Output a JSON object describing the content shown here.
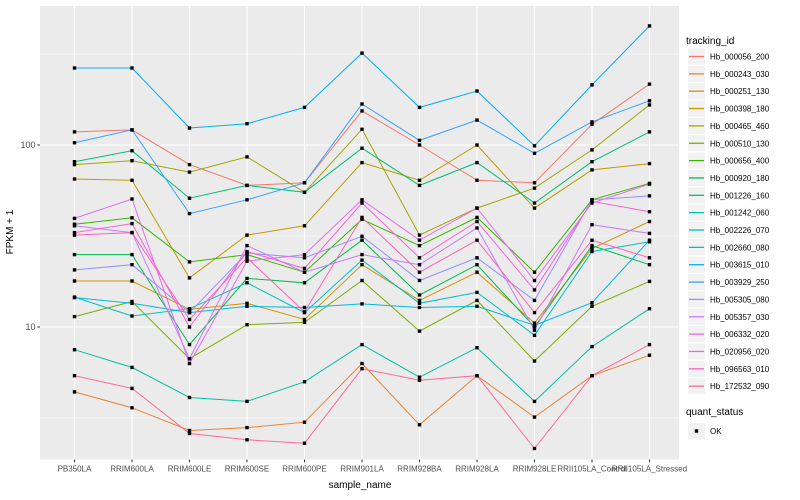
{
  "figure": {
    "panel_bg": "#EBEBEB",
    "grid_color": "#FFFFFF",
    "tick_color": "#333333",
    "tick_label_color": "#4D4D4D",
    "title_color": "#000000",
    "legend_key_bg": "#F2F2F2",
    "marker_color": "#000000"
  },
  "chart_data": {
    "type": "line",
    "title": "",
    "xlabel": "sample_name",
    "ylabel": "FPKM + 1",
    "y_scale": "log10",
    "y_ticks": [
      10,
      100
    ],
    "y_tick_labels": [
      "10",
      "100"
    ],
    "y_minor_ticks": [
      3.162,
      31.62,
      316.2
    ],
    "ylim": [
      1.88,
      581
    ],
    "grid": true,
    "legend_position": "right",
    "categories": [
      "PB350LA",
      "RRIM600LA",
      "RRIM600LE",
      "RRIM600SE",
      "RRIM600PE",
      "RRIM901LA",
      "RRIM928BA",
      "RRIM928LA",
      "RRIM928LE",
      "RRII105LA_Control",
      "RRII105LA_Stressed"
    ],
    "series": [
      {
        "name": "Hb_000056_200",
        "color": "#F8766D",
        "values": [
          118,
          121,
          78,
          60,
          62,
          154,
          100,
          64,
          62,
          130,
          216
        ]
      },
      {
        "name": "Hb_000243_030",
        "color": "#EA8331",
        "values": [
          4.4,
          3.6,
          2.7,
          2.8,
          3.0,
          6.3,
          2.9,
          5.4,
          3.2,
          5.4,
          7.0
        ]
      },
      {
        "name": "Hb_000251_130",
        "color": "#D89000",
        "values": [
          17.9,
          17.9,
          12.5,
          13.5,
          11.0,
          22,
          14,
          20,
          10.5,
          27,
          38
        ]
      },
      {
        "name": "Hb_000398_180",
        "color": "#C09B00",
        "values": [
          65,
          64,
          18.6,
          32,
          36,
          80,
          64,
          100,
          45,
          73,
          79
        ]
      },
      {
        "name": "Hb_000465_460",
        "color": "#A3A500",
        "values": [
          78,
          82,
          71,
          86,
          55,
          122,
          32,
          45,
          58,
          94,
          166
        ]
      },
      {
        "name": "Hb_000510_130",
        "color": "#7CAE00",
        "values": [
          11.4,
          13.8,
          6.7,
          10.3,
          10.6,
          18,
          9.5,
          14,
          6.5,
          13,
          17.8
        ]
      },
      {
        "name": "Hb_000656_400",
        "color": "#39B600",
        "values": [
          36.7,
          39.8,
          22.8,
          25,
          20,
          39,
          28,
          40,
          20,
          50,
          61.5
        ]
      },
      {
        "name": "Hb_000920_180",
        "color": "#00BB4E",
        "values": [
          25,
          25,
          8.0,
          18.5,
          17.5,
          30,
          15,
          22,
          10,
          28,
          22
        ]
      },
      {
        "name": "Hb_001226_160",
        "color": "#00BF7D",
        "values": [
          81,
          93,
          51,
          60,
          55,
          96,
          60,
          80,
          48,
          81,
          118
        ]
      },
      {
        "name": "Hb_001242_060",
        "color": "#00C1A3",
        "values": [
          7.5,
          6.0,
          4.1,
          3.9,
          5.0,
          8.0,
          5.3,
          7.7,
          3.9,
          7.8,
          12.6
        ]
      },
      {
        "name": "Hb_002226_070",
        "color": "#00BFC4",
        "values": [
          14.6,
          11.5,
          12.6,
          17.5,
          12,
          23.3,
          13.5,
          15.5,
          9.0,
          26,
          29.4
        ]
      },
      {
        "name": "Hb_002660_080",
        "color": "#00BAE0",
        "values": [
          14.5,
          13.5,
          12.0,
          13.0,
          12.8,
          13.4,
          12.8,
          13.0,
          10.2,
          13.6,
          30
        ]
      },
      {
        "name": "Hb_003615_010",
        "color": "#00B0F6",
        "values": [
          265,
          265,
          124,
          131,
          161,
          320,
          161,
          198,
          99,
          214,
          451
        ]
      },
      {
        "name": "Hb_003929_250",
        "color": "#35A2FF",
        "values": [
          103,
          121,
          42,
          50,
          62,
          168,
          106,
          137,
          90,
          134,
          175
        ]
      },
      {
        "name": "Hb_005305_080",
        "color": "#9590FF",
        "values": [
          20.6,
          22,
          12,
          25.5,
          24,
          31.5,
          18,
          24,
          14,
          50,
          52.5
        ]
      },
      {
        "name": "Hb_005357_030",
        "color": "#C77CFF",
        "values": [
          36,
          33,
          6.7,
          28,
          20,
          25,
          22,
          35,
          9.6,
          36.5,
          32.7
        ]
      },
      {
        "name": "Hb_006332_020",
        "color": "#E76BF3",
        "values": [
          39.5,
          50.5,
          6.3,
          23,
          25,
          50,
          30,
          45,
          18,
          48,
          61
        ]
      },
      {
        "name": "Hb_020956_020",
        "color": "#FA62DB",
        "values": [
          33,
          37,
          10,
          26,
          21,
          48,
          24,
          38,
          16,
          49,
          43
        ]
      },
      {
        "name": "Hb_096563_010",
        "color": "#FF62BC",
        "values": [
          32,
          33,
          11,
          24,
          12.1,
          40,
          20,
          30,
          12,
          30,
          24
        ]
      },
      {
        "name": "Hb_172532_090",
        "color": "#FF6A98",
        "values": [
          5.4,
          4.6,
          2.6,
          2.4,
          2.3,
          5.9,
          5.1,
          5.4,
          2.15,
          5.4,
          8.0
        ]
      }
    ],
    "marker": {
      "shape": "square",
      "label": "OK"
    }
  },
  "legend": {
    "tracking_title": "tracking_id",
    "quant_title": "quant_status",
    "quant_ok_label": "OK"
  }
}
